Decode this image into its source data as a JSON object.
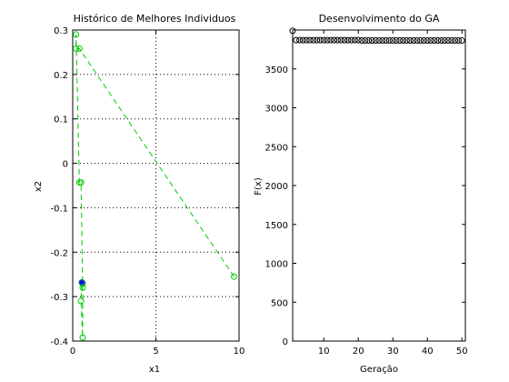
{
  "chart_data": [
    {
      "type": "line",
      "title": "Histórico de Melhores Individuos",
      "xlabel": "x1",
      "ylabel": "x2",
      "xlim": [
        0,
        10
      ],
      "ylim": [
        -0.4,
        0.3
      ],
      "xticks": [
        0,
        5,
        10
      ],
      "xtick_labels": [
        "0",
        "5",
        "10"
      ],
      "yticks": [
        -0.4,
        -0.3,
        -0.2,
        -0.1,
        0,
        0.1,
        0.2,
        0.3
      ],
      "ytick_labels": [
        "-0.4",
        "-0.3",
        "-0.2",
        "-0.1",
        "0",
        "0.1",
        "0.2",
        "0.3"
      ],
      "grid": true,
      "grid_x": [
        5
      ],
      "grid_y": [
        -0.3,
        -0.2,
        -0.1,
        0,
        0.1,
        0.2
      ],
      "series": [
        {
          "line_style": "dashed",
          "marker": "circle",
          "color": "#00cc00",
          "x": [
            9.7,
            0.4,
            0.2,
            0.2,
            0.4,
            0.5,
            0.6,
            0.6,
            0.6,
            0.5,
            0.55,
            0.6
          ],
          "y": [
            -0.255,
            0.258,
            0.258,
            0.29,
            -0.043,
            -0.043,
            -0.28,
            -0.27,
            -0.392,
            -0.31,
            -0.268,
            -0.27
          ]
        }
      ],
      "best_point": {
        "x": 0.55,
        "y": -0.268,
        "marker": "asterisk",
        "color": "#0000ff"
      }
    },
    {
      "type": "line",
      "title": "Desenvolvimento do GA",
      "xlabel": "Geração",
      "ylabel": "F(x)",
      "xlim": [
        1,
        51
      ],
      "ylim": [
        0,
        4000
      ],
      "xticks": [
        10,
        20,
        30,
        40,
        50
      ],
      "xtick_labels": [
        "10",
        "20",
        "30",
        "40",
        "50"
      ],
      "yticks": [
        0,
        500,
        1000,
        1500,
        2000,
        2500,
        3000,
        3500
      ],
      "ytick_labels": [
        "0",
        "500",
        "1000",
        "1500",
        "2000",
        "2500",
        "3000",
        "3500"
      ],
      "grid": false,
      "series": [
        {
          "marker": "circle",
          "color": "#000000",
          "x": [
            1,
            2,
            3,
            4,
            5,
            6,
            7,
            8,
            9,
            10,
            11,
            12,
            13,
            14,
            15,
            16,
            17,
            18,
            19,
            20,
            21,
            22,
            23,
            24,
            25,
            26,
            27,
            28,
            29,
            30,
            31,
            32,
            33,
            34,
            35,
            36,
            37,
            38,
            39,
            40,
            41,
            42,
            43,
            44,
            45,
            46,
            47,
            48,
            49,
            50
          ],
          "y": [
            3990,
            3870,
            3870,
            3870,
            3870,
            3870,
            3870,
            3870,
            3870,
            3870,
            3870,
            3870,
            3870,
            3870,
            3870,
            3870,
            3870,
            3870,
            3870,
            3870,
            3865,
            3865,
            3865,
            3865,
            3865,
            3865,
            3865,
            3865,
            3865,
            3865,
            3865,
            3865,
            3865,
            3865,
            3865,
            3865,
            3865,
            3865,
            3865,
            3865,
            3865,
            3865,
            3865,
            3865,
            3865,
            3865,
            3865,
            3865,
            3865,
            3865
          ]
        }
      ]
    }
  ]
}
